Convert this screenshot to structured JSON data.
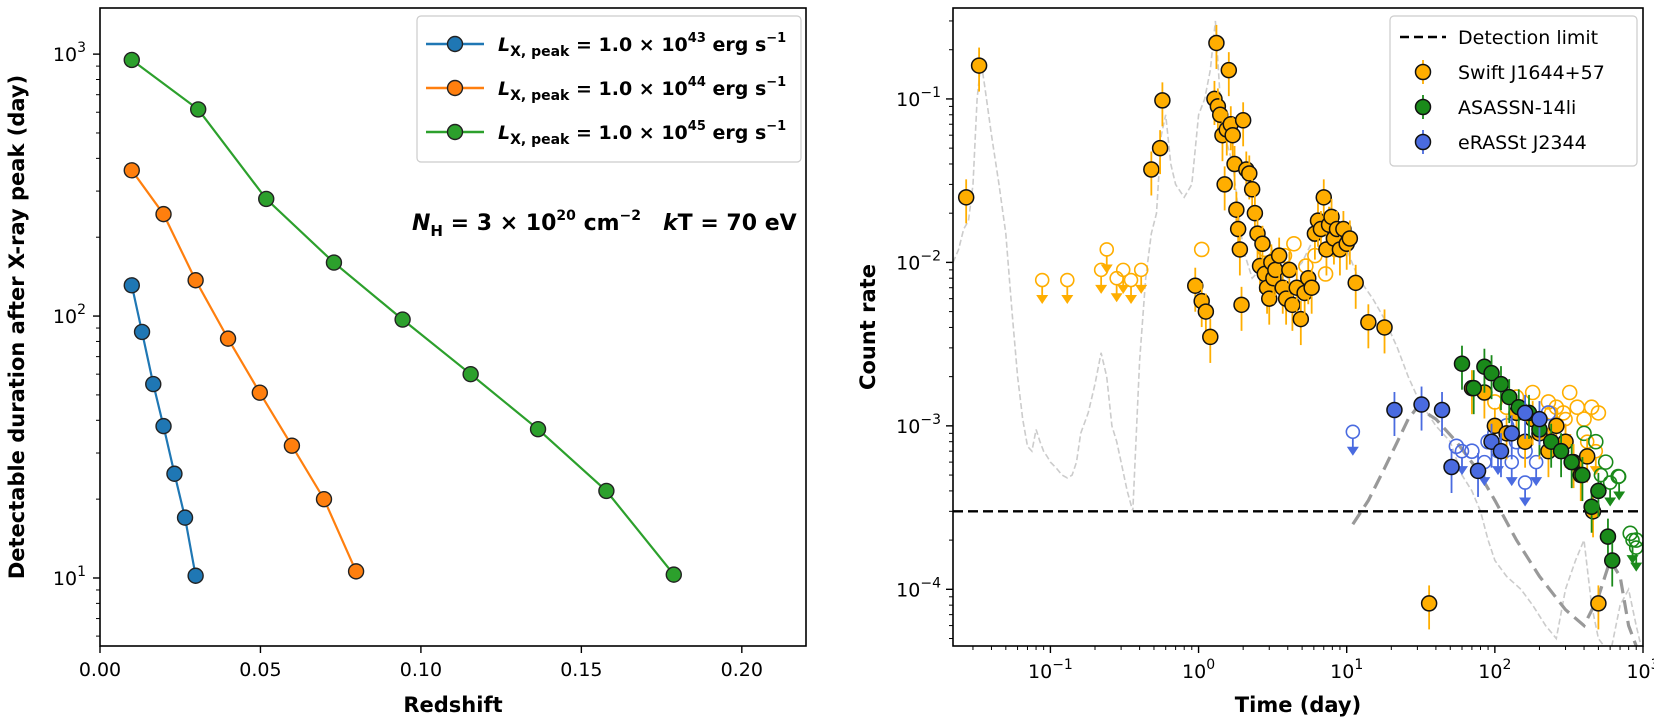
{
  "chart_data": [
    {
      "type": "line",
      "xlabel": "Redshift",
      "ylabel": "Detectable duration after X-ray peak (day)",
      "xlim": [
        0.0,
        0.22
      ],
      "ylim": [
        5.5,
        1500
      ],
      "yscale": "log",
      "xticks": [
        0.0,
        0.05,
        0.1,
        0.15,
        0.2
      ],
      "xtick_labels": [
        "0.00",
        "0.05",
        "0.10",
        "0.15",
        "0.20"
      ],
      "yticks": [
        {
          "value": 10,
          "base": "10",
          "exp": "1"
        },
        {
          "value": 100,
          "base": "10",
          "exp": "2"
        },
        {
          "value": 1000,
          "base": "10",
          "exp": "3"
        }
      ],
      "annotation": {
        "nh_sym": "N",
        "nh_sub": "H",
        "nh_eq": " = 3 × 10",
        "nh_exp": "20",
        "nh_unit": " cm",
        "nh_unit_exp": "−2",
        "kt_sym": "k",
        "kt_rest": "T = 70 eV"
      },
      "series": [
        {
          "name": "L_X,peak = 1.0×10^43 erg s^-1",
          "label_prefix": "L",
          "label_sub": "X, peak",
          "label_eq": " = 1.0 × 10",
          "label_exp": "43",
          "label_unit": " erg s",
          "label_unit_exp": "−1",
          "color": "#1f77b4",
          "x": [
            0.0099,
            0.0131,
            0.0166,
            0.0198,
            0.0232,
            0.0265,
            0.0298
          ],
          "y": [
            131,
            87,
            55,
            38,
            25,
            17,
            10.2
          ]
        },
        {
          "name": "L_X,peak = 1.0×10^44 erg s^-1",
          "label_prefix": "L",
          "label_sub": "X, peak",
          "label_eq": " = 1.0 × 10",
          "label_exp": "44",
          "label_unit": " erg s",
          "label_unit_exp": "−1",
          "color": "#ff7f0e",
          "x": [
            0.0099,
            0.0198,
            0.0298,
            0.0399,
            0.0498,
            0.0598,
            0.0698,
            0.0798
          ],
          "y": [
            360,
            245,
            137,
            82,
            51,
            32,
            20,
            10.6
          ]
        },
        {
          "name": "L_X,peak = 1.0×10^45 erg s^-1",
          "label_prefix": "L",
          "label_sub": "X, peak",
          "label_eq": " = 1.0 × 10",
          "label_exp": "45",
          "label_unit": " erg s",
          "label_unit_exp": "−1",
          "color": "#2ca02c",
          "x": [
            0.0099,
            0.0306,
            0.0518,
            0.0729,
            0.0943,
            0.1155,
            0.1365,
            0.1578,
            0.1788
          ],
          "y": [
            950,
            615,
            280,
            160,
            97,
            60,
            37,
            21.5,
            10.3
          ]
        }
      ]
    },
    {
      "type": "scatter",
      "xlabel": "Time (day)",
      "ylabel": "Count rate",
      "xscale": "log",
      "yscale": "log",
      "xlim": [
        0.022,
        1000
      ],
      "ylim": [
        4.5e-05,
        0.36
      ],
      "xticks": [
        {
          "value": 0.1,
          "base": "10",
          "exp": "−1"
        },
        {
          "value": 1,
          "base": "10",
          "exp": "0"
        },
        {
          "value": 10,
          "base": "10",
          "exp": "1"
        },
        {
          "value": 100,
          "base": "10",
          "exp": "2"
        },
        {
          "value": 1000,
          "base": "10",
          "exp": "3"
        }
      ],
      "yticks": [
        {
          "value": 0.0001,
          "base": "10",
          "exp": "−4"
        },
        {
          "value": 0.001,
          "base": "10",
          "exp": "−3"
        },
        {
          "value": 0.01,
          "base": "10",
          "exp": "−2"
        },
        {
          "value": 0.1,
          "base": "10",
          "exp": "−1"
        }
      ],
      "detection_limit": 0.0003,
      "legend": [
        {
          "label": "Detection limit",
          "kind": "dashed-line",
          "color": "#000000"
        },
        {
          "label": "Swift J1644+57",
          "kind": "marker",
          "color": "#ffae00"
        },
        {
          "label": "ASASSN-14li",
          "kind": "marker",
          "color": "#1a8a1a"
        },
        {
          "label": "eRASSt J2344",
          "kind": "marker",
          "color": "#4a6be0"
        }
      ],
      "background_curve": {
        "color": "#cccccc",
        "x": [
          0.022,
          0.024,
          0.026,
          0.028,
          0.03,
          0.032,
          0.034,
          0.036,
          0.04,
          0.045,
          0.05,
          0.055,
          0.06,
          0.065,
          0.07,
          0.075,
          0.08,
          0.085,
          0.09,
          0.095,
          0.1,
          0.11,
          0.12,
          0.13,
          0.14,
          0.15,
          0.16,
          0.18,
          0.2,
          0.22,
          0.24,
          0.26,
          0.28,
          0.3,
          0.33,
          0.36,
          0.4,
          0.44,
          0.48,
          0.52,
          0.56,
          0.6,
          0.65,
          0.7,
          0.8,
          0.9,
          1.0,
          1.1,
          1.2,
          1.3,
          1.4,
          1.5,
          1.7,
          2.0,
          2.3,
          2.6,
          3.0,
          3.5,
          4.0,
          5.0,
          6.0,
          7.0,
          8.0,
          9.0,
          10,
          12,
          15,
          18,
          22,
          26,
          30,
          35,
          40,
          50,
          60,
          70,
          80,
          90,
          100,
          120,
          150,
          180,
          220,
          260,
          300,
          350,
          400,
          450,
          500,
          600,
          700,
          800,
          900,
          1000
        ],
        "y": [
          0.01,
          0.012,
          0.016,
          0.018,
          0.03,
          0.1,
          0.17,
          0.12,
          0.06,
          0.03,
          0.015,
          0.005,
          0.002,
          0.0011,
          0.00075,
          0.0007,
          0.00095,
          0.0008,
          0.0007,
          0.00065,
          0.0006,
          0.00055,
          0.0005,
          0.00048,
          0.0005,
          0.0006,
          0.0009,
          0.0012,
          0.0018,
          0.0028,
          0.002,
          0.001,
          0.0008,
          0.0006,
          0.0004,
          0.0003,
          0.0025,
          0.008,
          0.015,
          0.02,
          0.06,
          0.08,
          0.04,
          0.03,
          0.025,
          0.03,
          0.08,
          0.1,
          0.15,
          0.3,
          0.1,
          0.06,
          0.04,
          0.012,
          0.008,
          0.009,
          0.009,
          0.007,
          0.008,
          0.01,
          0.014,
          0.02,
          0.022,
          0.015,
          0.012,
          0.008,
          0.006,
          0.0045,
          0.003,
          0.002,
          0.0015,
          0.0012,
          0.001,
          0.0008,
          0.0005,
          0.0004,
          0.0003,
          0.0002,
          0.00015,
          0.00012,
          0.0001,
          8e-05,
          6e-05,
          5e-05,
          0.0001,
          0.00015,
          0.0002,
          8e-05,
          5e-05,
          4e-05,
          8e-05,
          0.0001,
          6e-05,
          4e-05
        ]
      },
      "model_curve": {
        "color": "#999999",
        "x": [
          11,
          14,
          18,
          22,
          26,
          30,
          40,
          55,
          75,
          100,
          140,
          200,
          300,
          400,
          500,
          600,
          700,
          800,
          900
        ],
        "y": [
          0.00025,
          0.00035,
          0.00055,
          0.0008,
          0.0011,
          0.0013,
          0.0011,
          0.0008,
          0.00055,
          0.00035,
          0.0002,
          0.00012,
          7.5e-05,
          6e-05,
          9e-05,
          0.00015,
          0.00012,
          6e-05,
          4.5e-05
        ]
      },
      "swift_detections": {
        "color": "#ffae00",
        "x": [
          0.027,
          0.033,
          0.48,
          0.55,
          0.57,
          0.95,
          1.05,
          1.12,
          1.2,
          1.28,
          1.32,
          1.35,
          1.4,
          1.45,
          1.5,
          1.55,
          1.6,
          1.65,
          1.7,
          1.75,
          1.8,
          1.85,
          1.9,
          1.95,
          2.0,
          2.1,
          2.2,
          2.3,
          2.4,
          2.5,
          2.6,
          2.7,
          2.8,
          2.9,
          3.0,
          3.1,
          3.2,
          3.3,
          3.5,
          3.7,
          3.9,
          4.1,
          4.3,
          4.6,
          4.9,
          5.2,
          5.5,
          5.8,
          6.1,
          6.4,
          6.7,
          7.0,
          7.3,
          7.6,
          7.9,
          8.2,
          8.6,
          9.0,
          9.5,
          10.0,
          10.5,
          11.5,
          14,
          18,
          36
        ],
        "y": [
          0.025,
          0.16,
          0.037,
          0.05,
          0.098,
          0.0072,
          0.0058,
          0.005,
          0.0035,
          0.1,
          0.22,
          0.09,
          0.08,
          0.06,
          0.03,
          0.065,
          0.15,
          0.07,
          0.06,
          0.04,
          0.021,
          0.016,
          0.012,
          0.0055,
          0.074,
          0.037,
          0.035,
          0.028,
          0.02,
          0.015,
          0.0095,
          0.013,
          0.0085,
          0.007,
          0.006,
          0.01,
          0.008,
          0.009,
          0.011,
          0.007,
          0.006,
          0.009,
          0.0055,
          0.007,
          0.0045,
          0.0065,
          0.008,
          0.007,
          0.015,
          0.018,
          0.016,
          0.025,
          0.012,
          0.017,
          0.019,
          0.014,
          0.016,
          0.012,
          0.016,
          0.013,
          0.014,
          0.0075,
          0.0043,
          0.004,
          8.2e-05
        ]
      },
      "swift_late": {
        "color": "#ffae00",
        "x": [
          70,
          85,
          100,
          120,
          140,
          160,
          180,
          200,
          230,
          260,
          300,
          340,
          380,
          420,
          460,
          500
        ],
        "y": [
          0.0017,
          0.0016,
          0.001,
          0.0009,
          0.0012,
          0.0008,
          0.0011,
          0.0009,
          0.0007,
          0.001,
          0.0008,
          0.0006,
          0.0005,
          0.00065,
          0.0003,
          8.2e-05
        ]
      },
      "swift_open": {
        "color": "#ffae00",
        "x": [
          1.05,
          2.8,
          3.1,
          3.8,
          4.4,
          5.3,
          6.1,
          7.2,
          8.4,
          100,
          120,
          140,
          160,
          180,
          200,
          230,
          260,
          290,
          320,
          360,
          400,
          450,
          500
        ],
        "y": [
          0.012,
          0.012,
          0.01,
          0.011,
          0.013,
          0.0095,
          0.011,
          0.0085,
          0.012,
          0.0014,
          0.0013,
          0.0015,
          0.0012,
          0.0016,
          0.0011,
          0.0014,
          0.0013,
          0.0012,
          0.0016,
          0.0013,
          0.0011,
          0.0013,
          0.0012
        ]
      },
      "swift_upper_limits": {
        "color": "#ffae00",
        "x": [
          0.088,
          0.13,
          0.22,
          0.24,
          0.28,
          0.31,
          0.35,
          0.41,
          240,
          300,
          420,
          480
        ],
        "y": [
          0.0078,
          0.0078,
          0.009,
          0.012,
          0.008,
          0.009,
          0.0078,
          0.009,
          0.0012,
          0.0011,
          0.0008,
          0.0007
        ]
      },
      "asassn_detections": {
        "color": "#1a8a1a",
        "x": [
          60,
          72,
          85,
          95,
          110,
          125,
          145,
          170,
          200,
          240,
          280,
          330,
          390,
          450,
          500,
          580,
          620
        ],
        "y": [
          0.0024,
          0.0017,
          0.0023,
          0.0021,
          0.0018,
          0.0015,
          0.0013,
          0.0012,
          0.00095,
          0.0008,
          0.0007,
          0.0006,
          0.0005,
          0.00032,
          0.0004,
          0.00021,
          0.00015
        ]
      },
      "asassn_open": {
        "color": "#1a8a1a",
        "x": [
          400,
          480,
          560,
          680,
          820,
          900
        ],
        "y": [
          0.0009,
          0.0008,
          0.0006,
          0.00049,
          0.00022,
          0.0002
        ]
      },
      "asassn_upper_limits": {
        "color": "#1a8a1a",
        "x": [
          520,
          600,
          690,
          850,
          900
        ],
        "y": [
          0.0005,
          0.00045,
          0.00049,
          0.0002,
          0.00018
        ]
      },
      "erass_detections": {
        "color": "#4a6be0",
        "x": [
          21,
          32,
          44,
          51,
          77,
          95,
          110,
          130,
          160,
          200
        ],
        "y": [
          0.00125,
          0.00135,
          0.00125,
          0.00056,
          0.00053,
          0.0008,
          0.0007,
          0.0009,
          0.0012,
          0.0011
        ]
      },
      "erass_open": {
        "color": "#4a6be0",
        "x": [
          55,
          70,
          90,
          100,
          120,
          140,
          160,
          180,
          200,
          230
        ],
        "y": [
          0.00075,
          0.0007,
          0.0008,
          0.0009,
          0.001,
          0.0008,
          0.0007,
          0.0011,
          0.0009,
          0.0012
        ]
      },
      "erass_upper_limits": {
        "color": "#4a6be0",
        "x": [
          11,
          60,
          85,
          105,
          130,
          160,
          190
        ],
        "y": [
          0.00092,
          0.0007,
          0.0006,
          0.0007,
          0.0006,
          0.00045,
          0.0006
        ]
      }
    }
  ]
}
